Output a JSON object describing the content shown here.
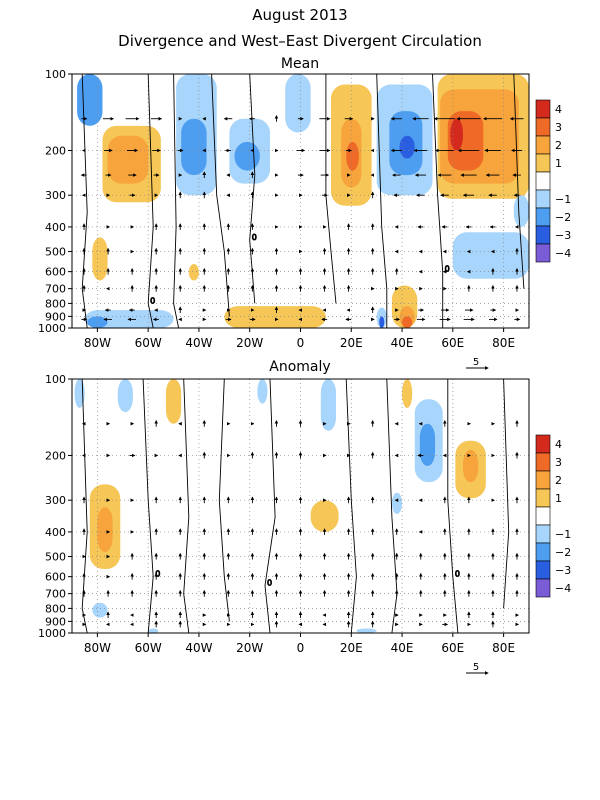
{
  "title_line1": "August 2013",
  "title_line2": "Divergence and West–East Divergent Circulation",
  "colors": {
    "n4": "#7a5cd6",
    "n3": "#2a5ee0",
    "n2": "#4d9df0",
    "n1": "#a8d5fb",
    "p1": "#f6c656",
    "p2": "#f7a43c",
    "p3": "#ee6a26",
    "p4": "#d42a1e"
  },
  "chart_data": [
    {
      "type": "heatmap",
      "panel_title": "Mean",
      "x_ticks": [
        "80W",
        "60W",
        "40W",
        "20W",
        "0",
        "20E",
        "40E",
        "60E",
        "80E"
      ],
      "x_tick_values": [
        -80,
        -60,
        -40,
        -20,
        0,
        20,
        40,
        60,
        80
      ],
      "xlim": [
        -90,
        90
      ],
      "y_ticks": [
        "100",
        "200",
        "300",
        "400",
        "500",
        "600",
        "700",
        "800",
        "900",
        "1000"
      ],
      "y_tick_values": [
        100,
        200,
        300,
        400,
        500,
        600,
        700,
        800,
        900,
        1000
      ],
      "ylim": [
        1000,
        100
      ],
      "y_scale": "log",
      "colorbar_levels": [
        "4",
        "3",
        "2",
        "1",
        "−1",
        "−2",
        "−3",
        "−4"
      ],
      "vector_reference": "5",
      "contour_label": "0",
      "regions": [
        {
          "x0": -88,
          "x1": -78,
          "p0": 100,
          "p1": 160,
          "level": -2
        },
        {
          "x0": -78,
          "x1": -55,
          "p0": 160,
          "p1": 320,
          "level": 1
        },
        {
          "x0": -76,
          "x1": -60,
          "p0": 175,
          "p1": 270,
          "level": 2
        },
        {
          "x0": -49,
          "x1": -33,
          "p0": 100,
          "p1": 300,
          "level": -1
        },
        {
          "x0": -47,
          "x1": -37,
          "p0": 150,
          "p1": 250,
          "level": -2
        },
        {
          "x0": -28,
          "x1": -12,
          "p0": 150,
          "p1": 270,
          "level": -1
        },
        {
          "x0": -26,
          "x1": -16,
          "p0": 185,
          "p1": 240,
          "level": -2
        },
        {
          "x0": -6,
          "x1": 4,
          "p0": 100,
          "p1": 170,
          "level": -1
        },
        {
          "x0": 12,
          "x1": 28,
          "p0": 110,
          "p1": 330,
          "level": 1
        },
        {
          "x0": 16,
          "x1": 24,
          "p0": 150,
          "p1": 280,
          "level": 2
        },
        {
          "x0": 18,
          "x1": 23,
          "p0": 185,
          "p1": 240,
          "level": 3
        },
        {
          "x0": 30,
          "x1": 52,
          "p0": 110,
          "p1": 300,
          "level": -1
        },
        {
          "x0": 35,
          "x1": 48,
          "p0": 140,
          "p1": 250,
          "level": -2
        },
        {
          "x0": 39,
          "x1": 45,
          "p0": 175,
          "p1": 215,
          "level": -3
        },
        {
          "x0": 54,
          "x1": 90,
          "p0": 100,
          "p1": 310,
          "level": 1
        },
        {
          "x0": 55,
          "x1": 86,
          "p0": 115,
          "p1": 270,
          "level": 2
        },
        {
          "x0": 58,
          "x1": 72,
          "p0": 140,
          "p1": 240,
          "level": 3
        },
        {
          "x0": 59,
          "x1": 64,
          "p0": 150,
          "p1": 200,
          "level": 4
        },
        {
          "x0": -82,
          "x1": -76,
          "p0": 440,
          "p1": 650,
          "level": 1
        },
        {
          "x0": -44,
          "x1": -40,
          "p0": 560,
          "p1": 650,
          "level": 1
        },
        {
          "x0": 60,
          "x1": 90,
          "p0": 420,
          "p1": 640,
          "level": -1
        },
        {
          "x0": 84,
          "x1": 90,
          "p0": 300,
          "p1": 400,
          "level": -1
        },
        {
          "x0": -85,
          "x1": -50,
          "p0": 850,
          "p1": 1000,
          "level": -1
        },
        {
          "x0": -84,
          "x1": -76,
          "p0": 900,
          "p1": 1000,
          "level": -2
        },
        {
          "x0": -30,
          "x1": 10,
          "p0": 820,
          "p1": 1000,
          "level": 1
        },
        {
          "x0": 30,
          "x1": 34,
          "p0": 830,
          "p1": 1000,
          "level": -1
        },
        {
          "x0": 31,
          "x1": 33,
          "p0": 900,
          "p1": 1000,
          "level": -3
        },
        {
          "x0": 36,
          "x1": 46,
          "p0": 680,
          "p1": 1000,
          "level": 1
        },
        {
          "x0": 39,
          "x1": 45,
          "p0": 820,
          "p1": 1000,
          "level": 2
        },
        {
          "x0": 40,
          "x1": 44,
          "p0": 900,
          "p1": 1000,
          "level": 3
        }
      ],
      "contours": [
        [
          [
            -86,
            100
          ],
          [
            -84,
            350
          ],
          [
            -86,
            700
          ],
          [
            -84,
            1000
          ]
        ],
        [
          [
            -60,
            100
          ],
          [
            -58,
            400
          ],
          [
            -60,
            800
          ],
          [
            -58,
            1000
          ]
        ],
        [
          [
            -50,
            100
          ],
          [
            -49,
            400
          ],
          [
            -50,
            800
          ],
          [
            -48,
            1000
          ]
        ],
        [
          [
            -35,
            100
          ],
          [
            -33,
            300
          ],
          [
            -30,
            500
          ],
          [
            -28,
            900
          ]
        ],
        [
          [
            -20,
            100
          ],
          [
            -18,
            250
          ],
          [
            -20,
            450
          ],
          [
            -18,
            800
          ]
        ],
        [
          [
            10,
            100
          ],
          [
            10,
            300
          ],
          [
            12,
            500
          ],
          [
            14,
            800
          ]
        ],
        [
          [
            30,
            100
          ],
          [
            32,
            400
          ],
          [
            34,
            700
          ],
          [
            34,
            1000
          ]
        ],
        [
          [
            52,
            100
          ],
          [
            54,
            300
          ],
          [
            56,
            600
          ],
          [
            56,
            1000
          ]
        ],
        [
          [
            84,
            100
          ],
          [
            86,
            350
          ],
          [
            88,
            700
          ]
        ]
      ],
      "vector_rows": [
        {
          "p": 150,
          "u": [
            2,
            4,
            5,
            4,
            1,
            -1,
            -3,
            -2,
            0,
            2,
            4,
            3,
            1,
            -4,
            -6,
            -8,
            -9,
            -7,
            -5
          ]
        },
        {
          "p": 200,
          "u": [
            -1,
            3,
            4,
            3,
            2,
            -1,
            -2,
            -1,
            1,
            3,
            4,
            2,
            -1,
            -4,
            -5,
            -7,
            -8,
            -6,
            -4
          ]
        },
        {
          "p": 250,
          "u": [
            -2,
            2,
            3,
            2,
            1,
            0,
            -1,
            0,
            1,
            2,
            3,
            1,
            -1,
            -3,
            -4,
            -5,
            -6,
            -5,
            -3
          ]
        },
        {
          "p": 300,
          "u": [
            -1,
            1,
            2,
            1,
            0,
            0,
            -1,
            0,
            1,
            1,
            2,
            1,
            0,
            -2,
            -3,
            -3,
            -4,
            -3,
            -2
          ]
        },
        {
          "p": 400,
          "u": [
            0,
            1,
            1,
            0,
            0,
            0,
            0,
            0,
            1,
            1,
            1,
            0,
            0,
            -1,
            -2,
            -2,
            -2,
            -2,
            -1
          ]
        },
        {
          "p": 500,
          "u": [
            0,
            0,
            1,
            0,
            0,
            0,
            0,
            0,
            0,
            1,
            0,
            0,
            0,
            -1,
            -1,
            -1,
            -1,
            -1,
            0
          ]
        },
        {
          "p": 600,
          "u": [
            0,
            0,
            0,
            0,
            0,
            0,
            0,
            0,
            0,
            0,
            0,
            0,
            0,
            0,
            -1,
            -1,
            -1,
            0,
            0
          ]
        },
        {
          "p": 700,
          "u": [
            0,
            -1,
            0,
            0,
            0,
            0,
            0,
            0,
            0,
            0,
            0,
            0,
            1,
            1,
            1,
            1,
            0,
            0,
            0
          ]
        },
        {
          "p": 850,
          "u": [
            1,
            -2,
            -2,
            -1,
            0,
            1,
            1,
            1,
            0,
            -1,
            -1,
            -1,
            0,
            1,
            2,
            3,
            3,
            2,
            1
          ]
        },
        {
          "p": 925,
          "u": [
            2,
            -3,
            -3,
            -2,
            -1,
            1,
            2,
            2,
            1,
            -1,
            -2,
            -2,
            1,
            2,
            3,
            4,
            4,
            3,
            2
          ]
        }
      ]
    },
    {
      "type": "heatmap",
      "panel_title": "Anomaly",
      "x_ticks": [
        "80W",
        "60W",
        "40W",
        "20W",
        "0",
        "20E",
        "40E",
        "60E",
        "80E"
      ],
      "x_tick_values": [
        -80,
        -60,
        -40,
        -20,
        0,
        20,
        40,
        60,
        80
      ],
      "xlim": [
        -90,
        90
      ],
      "y_ticks": [
        "100",
        "200",
        "300",
        "400",
        "500",
        "600",
        "700",
        "800",
        "900",
        "1000"
      ],
      "y_tick_values": [
        100,
        200,
        300,
        400,
        500,
        600,
        700,
        800,
        900,
        1000
      ],
      "ylim": [
        1000,
        100
      ],
      "y_scale": "log",
      "colorbar_levels": [
        "4",
        "3",
        "2",
        "1",
        "−1",
        "−2",
        "−3",
        "−4"
      ],
      "vector_reference": "5",
      "contour_label": "0",
      "regions": [
        {
          "x0": -89,
          "x1": -85,
          "p0": 100,
          "p1": 130,
          "level": -1
        },
        {
          "x0": -72,
          "x1": -66,
          "p0": 100,
          "p1": 135,
          "level": -1
        },
        {
          "x0": -53,
          "x1": -47,
          "p0": 100,
          "p1": 150,
          "level": 1
        },
        {
          "x0": -17,
          "x1": -13,
          "p0": 100,
          "p1": 125,
          "level": -1
        },
        {
          "x0": 8,
          "x1": 14,
          "p0": 100,
          "p1": 160,
          "level": -1
        },
        {
          "x0": 40,
          "x1": 44,
          "p0": 100,
          "p1": 130,
          "level": 1
        },
        {
          "x0": 45,
          "x1": 56,
          "p0": 120,
          "p1": 255,
          "level": -1
        },
        {
          "x0": 47,
          "x1": 53,
          "p0": 150,
          "p1": 220,
          "level": -2
        },
        {
          "x0": 61,
          "x1": 73,
          "p0": 175,
          "p1": 295,
          "level": 1
        },
        {
          "x0": 64,
          "x1": 70,
          "p0": 190,
          "p1": 255,
          "level": 2
        },
        {
          "x0": -83,
          "x1": -71,
          "p0": 260,
          "p1": 560,
          "level": 1
        },
        {
          "x0": -80,
          "x1": -74,
          "p0": 320,
          "p1": 480,
          "level": 2
        },
        {
          "x0": 4,
          "x1": 15,
          "p0": 300,
          "p1": 400,
          "level": 1
        },
        {
          "x0": 36,
          "x1": 40,
          "p0": 280,
          "p1": 340,
          "level": -1
        },
        {
          "x0": -82,
          "x1": -76,
          "p0": 760,
          "p1": 870,
          "level": -1
        },
        {
          "x0": -60,
          "x1": -56,
          "p0": 960,
          "p1": 1000,
          "level": -1
        },
        {
          "x0": 22,
          "x1": 30,
          "p0": 960,
          "p1": 1000,
          "level": -1
        }
      ],
      "contours": [
        [
          [
            -86,
            100
          ],
          [
            -84,
            400
          ],
          [
            -86,
            800
          ],
          [
            -84,
            1000
          ]
        ],
        [
          [
            -62,
            100
          ],
          [
            -60,
            300
          ],
          [
            -58,
            600
          ],
          [
            -60,
            1000
          ]
        ],
        [
          [
            -46,
            100
          ],
          [
            -44,
            350
          ],
          [
            -46,
            700
          ],
          [
            -44,
            1000
          ]
        ],
        [
          [
            -30,
            100
          ],
          [
            -32,
            300
          ],
          [
            -30,
            600
          ],
          [
            -28,
            900
          ]
        ],
        [
          [
            -12,
            100
          ],
          [
            -10,
            350
          ],
          [
            -14,
            650
          ],
          [
            -12,
            1000
          ]
        ],
        [
          [
            18,
            100
          ],
          [
            20,
            300
          ],
          [
            22,
            600
          ],
          [
            20,
            1000
          ]
        ],
        [
          [
            34,
            100
          ],
          [
            36,
            350
          ],
          [
            38,
            700
          ],
          [
            36,
            1000
          ]
        ],
        [
          [
            58,
            100
          ],
          [
            58,
            300
          ],
          [
            60,
            600
          ],
          [
            62,
            1000
          ]
        ],
        [
          [
            80,
            100
          ],
          [
            82,
            400
          ],
          [
            80,
            800
          ]
        ]
      ],
      "vector_rows": [
        {
          "p": 150,
          "u": [
            -1,
            1,
            1,
            0,
            -1,
            0,
            1,
            1,
            0,
            0,
            1,
            1,
            0,
            -1,
            -1,
            0,
            1,
            1,
            0
          ]
        },
        {
          "p": 200,
          "u": [
            -1,
            1,
            2,
            1,
            -1,
            0,
            1,
            0,
            0,
            0,
            1,
            1,
            0,
            -1,
            -2,
            -1,
            1,
            1,
            0
          ]
        },
        {
          "p": 300,
          "u": [
            0,
            1,
            1,
            0,
            0,
            0,
            0,
            0,
            0,
            0,
            1,
            0,
            0,
            -1,
            -1,
            0,
            0,
            1,
            0
          ]
        },
        {
          "p": 400,
          "u": [
            0,
            1,
            1,
            0,
            0,
            0,
            0,
            0,
            0,
            0,
            0,
            0,
            0,
            0,
            -1,
            0,
            0,
            0,
            0
          ]
        },
        {
          "p": 500,
          "u": [
            1,
            1,
            0,
            0,
            0,
            0,
            0,
            0,
            0,
            0,
            0,
            0,
            0,
            0,
            0,
            0,
            0,
            0,
            0
          ]
        },
        {
          "p": 600,
          "u": [
            0,
            1,
            0,
            0,
            0,
            0,
            0,
            0,
            0,
            0,
            0,
            0,
            0,
            0,
            0,
            0,
            0,
            0,
            0
          ]
        },
        {
          "p": 700,
          "u": [
            0,
            0,
            0,
            0,
            0,
            0,
            0,
            0,
            0,
            0,
            0,
            0,
            0,
            0,
            0,
            0,
            0,
            0,
            0
          ]
        },
        {
          "p": 850,
          "u": [
            1,
            0,
            -1,
            0,
            0,
            1,
            1,
            0,
            0,
            0,
            -1,
            0,
            0,
            1,
            1,
            1,
            0,
            0,
            1
          ]
        },
        {
          "p": 925,
          "u": [
            1,
            -1,
            -1,
            0,
            0,
            1,
            1,
            1,
            0,
            -1,
            -1,
            0,
            0,
            1,
            1,
            2,
            1,
            0,
            1
          ]
        }
      ]
    }
  ]
}
